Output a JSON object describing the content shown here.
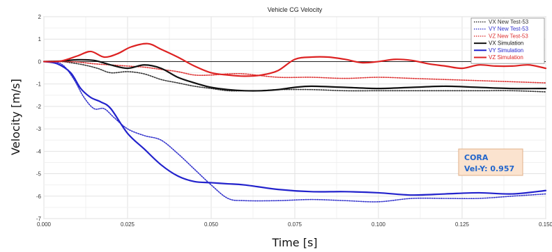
{
  "chart_data": {
    "type": "line",
    "title": "Vehicle CG Velocity",
    "xlabel": "Time [s]",
    "ylabel": "Velocity [m/s]",
    "xlim": [
      0,
      0.15
    ],
    "ylim": [
      -7,
      2
    ],
    "x_ticks": [
      "0.000",
      "0.025",
      "0.050",
      "0.075",
      "0.100",
      "0.125",
      "0.150"
    ],
    "y_ticks": [
      "2",
      "1",
      "0",
      "-1",
      "-2",
      "-3",
      "-4",
      "-5",
      "-6",
      "-7"
    ],
    "grid": true,
    "legend_position": "top-right",
    "series": [
      {
        "name": "VX New Test-53",
        "color": "#333333",
        "style": "dotted",
        "x": [
          0,
          0.005,
          0.008,
          0.012,
          0.016,
          0.02,
          0.025,
          0.03,
          0.035,
          0.04,
          0.045,
          0.05,
          0.055,
          0.06,
          0.065,
          0.07,
          0.08,
          0.09,
          0.1,
          0.11,
          0.12,
          0.13,
          0.14,
          0.15
        ],
        "y": [
          0,
          0,
          -0.05,
          -0.15,
          -0.3,
          -0.5,
          -0.45,
          -0.55,
          -0.8,
          -0.95,
          -1.1,
          -1.2,
          -1.3,
          -1.3,
          -1.3,
          -1.25,
          -1.25,
          -1.3,
          -1.3,
          -1.3,
          -1.3,
          -1.3,
          -1.3,
          -1.35
        ]
      },
      {
        "name": "VY New Test-53",
        "color": "#3333cc",
        "style": "dotted",
        "x": [
          0,
          0.003,
          0.006,
          0.009,
          0.012,
          0.015,
          0.018,
          0.021,
          0.025,
          0.03,
          0.035,
          0.04,
          0.045,
          0.05,
          0.055,
          0.06,
          0.07,
          0.08,
          0.09,
          0.1,
          0.11,
          0.12,
          0.13,
          0.14,
          0.15
        ],
        "y": [
          0,
          0,
          -0.2,
          -0.8,
          -1.6,
          -2.1,
          -2.1,
          -2.5,
          -3.0,
          -3.3,
          -3.5,
          -4.1,
          -4.8,
          -5.5,
          -6.1,
          -6.2,
          -6.2,
          -6.15,
          -6.2,
          -6.25,
          -6.1,
          -6.1,
          -6.1,
          -6.0,
          -5.9
        ]
      },
      {
        "name": "VZ New Test-53",
        "color": "#dd3333",
        "style": "dotted",
        "x": [
          0,
          0.005,
          0.01,
          0.015,
          0.02,
          0.025,
          0.03,
          0.035,
          0.04,
          0.045,
          0.05,
          0.055,
          0.06,
          0.07,
          0.08,
          0.09,
          0.1,
          0.11,
          0.12,
          0.13,
          0.14,
          0.15
        ],
        "y": [
          0,
          0,
          -0.02,
          -0.1,
          -0.15,
          -0.2,
          -0.25,
          -0.35,
          -0.45,
          -0.6,
          -0.6,
          -0.55,
          -0.55,
          -0.7,
          -0.7,
          -0.75,
          -0.7,
          -0.75,
          -0.8,
          -0.85,
          -0.9,
          -0.95
        ]
      },
      {
        "name": "VX Simulation",
        "color": "#111111",
        "style": "solid",
        "x": [
          0,
          0.005,
          0.01,
          0.015,
          0.02,
          0.025,
          0.03,
          0.035,
          0.04,
          0.045,
          0.05,
          0.055,
          0.06,
          0.065,
          0.07,
          0.075,
          0.08,
          0.09,
          0.1,
          0.11,
          0.12,
          0.13,
          0.14,
          0.15
        ],
        "y": [
          0,
          0.02,
          0.08,
          0.05,
          -0.15,
          -0.3,
          -0.15,
          -0.3,
          -0.7,
          -0.95,
          -1.15,
          -1.25,
          -1.3,
          -1.3,
          -1.25,
          -1.15,
          -1.1,
          -1.15,
          -1.2,
          -1.15,
          -1.1,
          -1.15,
          -1.2,
          -1.2
        ]
      },
      {
        "name": "VY Simulation",
        "color": "#2222cc",
        "style": "solid",
        "x": [
          0,
          0.004,
          0.008,
          0.011,
          0.014,
          0.017,
          0.02,
          0.025,
          0.03,
          0.035,
          0.04,
          0.045,
          0.05,
          0.055,
          0.06,
          0.07,
          0.08,
          0.09,
          0.1,
          0.11,
          0.12,
          0.13,
          0.14,
          0.15
        ],
        "y": [
          0,
          -0.1,
          -0.5,
          -1.2,
          -1.6,
          -1.8,
          -2.1,
          -3.2,
          -3.9,
          -4.6,
          -5.1,
          -5.35,
          -5.4,
          -5.45,
          -5.5,
          -5.7,
          -5.8,
          -5.8,
          -5.85,
          -5.95,
          -5.9,
          -5.85,
          -5.9,
          -5.75
        ]
      },
      {
        "name": "VZ Simulation",
        "color": "#dd2222",
        "style": "solid",
        "x": [
          0,
          0.005,
          0.01,
          0.014,
          0.018,
          0.022,
          0.026,
          0.031,
          0.035,
          0.04,
          0.045,
          0.05,
          0.055,
          0.06,
          0.065,
          0.07,
          0.075,
          0.08,
          0.085,
          0.09,
          0.095,
          0.1,
          0.105,
          0.11,
          0.115,
          0.12,
          0.125,
          0.13,
          0.135,
          0.14,
          0.145,
          0.15
        ],
        "y": [
          0,
          0.02,
          0.25,
          0.45,
          0.2,
          0.35,
          0.65,
          0.8,
          0.55,
          0.2,
          -0.2,
          -0.5,
          -0.6,
          -0.65,
          -0.6,
          -0.4,
          0.1,
          0.2,
          0.2,
          0.1,
          -0.05,
          0.0,
          0.1,
          0.05,
          -0.1,
          -0.2,
          -0.3,
          -0.15,
          -0.2,
          -0.2,
          -0.15,
          -0.3
        ]
      }
    ],
    "annotation": {
      "line1": "CORA",
      "line2": "Vel-Y: 0.957",
      "background": "#fbe3cf",
      "border": "#e0b08a"
    }
  }
}
